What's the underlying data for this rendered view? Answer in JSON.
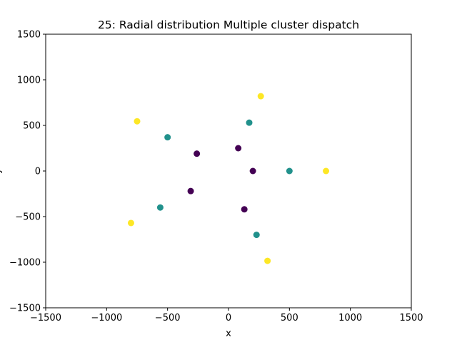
{
  "chart_data": {
    "type": "scatter",
    "title": "25: Radial distribution Multiple cluster dispatch",
    "xlabel": "x",
    "ylabel": "y",
    "xlim": [
      -1500,
      1500
    ],
    "ylim": [
      -1500,
      1500
    ],
    "xticks": [
      -1500,
      -1000,
      -500,
      0,
      500,
      1000,
      1500
    ],
    "yticks": [
      -1500,
      -1000,
      -500,
      0,
      500,
      1000,
      1500
    ],
    "xtick_labels": [
      "−1500",
      "−1000",
      "−500",
      "0",
      "500",
      "1000",
      "1500"
    ],
    "ytick_labels": [
      "−1500",
      "−1000",
      "−500",
      "0",
      "500",
      "1000",
      "1500"
    ],
    "grid": false,
    "series": [
      {
        "color": "#440154",
        "points": [
          [
            200,
            0
          ],
          [
            80,
            250
          ],
          [
            -260,
            190
          ],
          [
            -310,
            -220
          ],
          [
            130,
            -420
          ]
        ]
      },
      {
        "color": "#21918c",
        "points": [
          [
            500,
            0
          ],
          [
            170,
            530
          ],
          [
            -500,
            370
          ],
          [
            -560,
            -400
          ],
          [
            230,
            -700
          ]
        ]
      },
      {
        "color": "#fde725",
        "points": [
          [
            800,
            0
          ],
          [
            265,
            820
          ],
          [
            -750,
            545
          ],
          [
            -800,
            -570
          ],
          [
            320,
            -985
          ]
        ]
      }
    ]
  }
}
